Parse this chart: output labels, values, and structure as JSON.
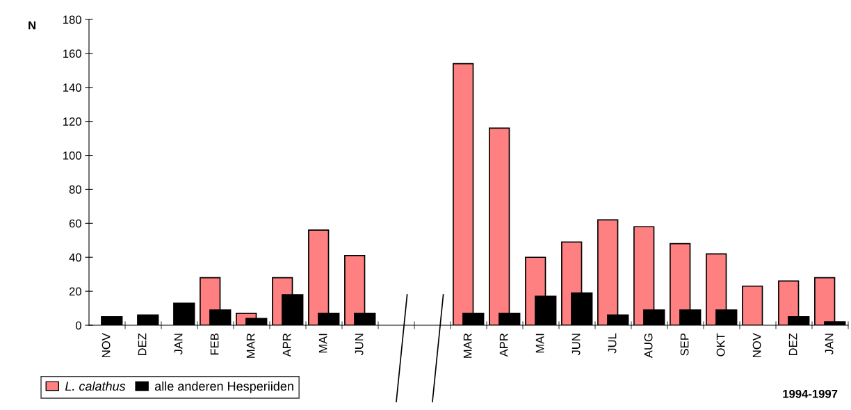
{
  "chart_data": {
    "type": "bar",
    "ylabel": "N",
    "categories": [
      "NOV",
      "DEZ",
      "JAN",
      "FEB",
      "MAR",
      "APR",
      "MAI",
      "JUN",
      null,
      null,
      "MAR",
      "APR",
      "MAI",
      "JUN",
      "JUL",
      "AUG",
      "SEP",
      "OKT",
      "NOV",
      "DEZ",
      "JAN"
    ],
    "series": [
      {
        "name": "L. calathus",
        "color": "#ff8080",
        "values": [
          null,
          null,
          null,
          28,
          7,
          28,
          56,
          41,
          null,
          null,
          154,
          116,
          40,
          49,
          62,
          58,
          48,
          42,
          23,
          26,
          28
        ]
      },
      {
        "name": "alle anderen Hesperiiden",
        "color": "#000000",
        "values": [
          5,
          6,
          13,
          9,
          4,
          18,
          7,
          7,
          null,
          null,
          7,
          7,
          17,
          19,
          6,
          9,
          9,
          9,
          null,
          5,
          2
        ]
      }
    ],
    "ylim": [
      0,
      180
    ],
    "yticks": [
      0,
      20,
      40,
      60,
      80,
      100,
      120,
      140,
      160,
      180
    ],
    "grid": false,
    "legend": "bottom left",
    "annotations": [
      "1994-1997"
    ]
  }
}
